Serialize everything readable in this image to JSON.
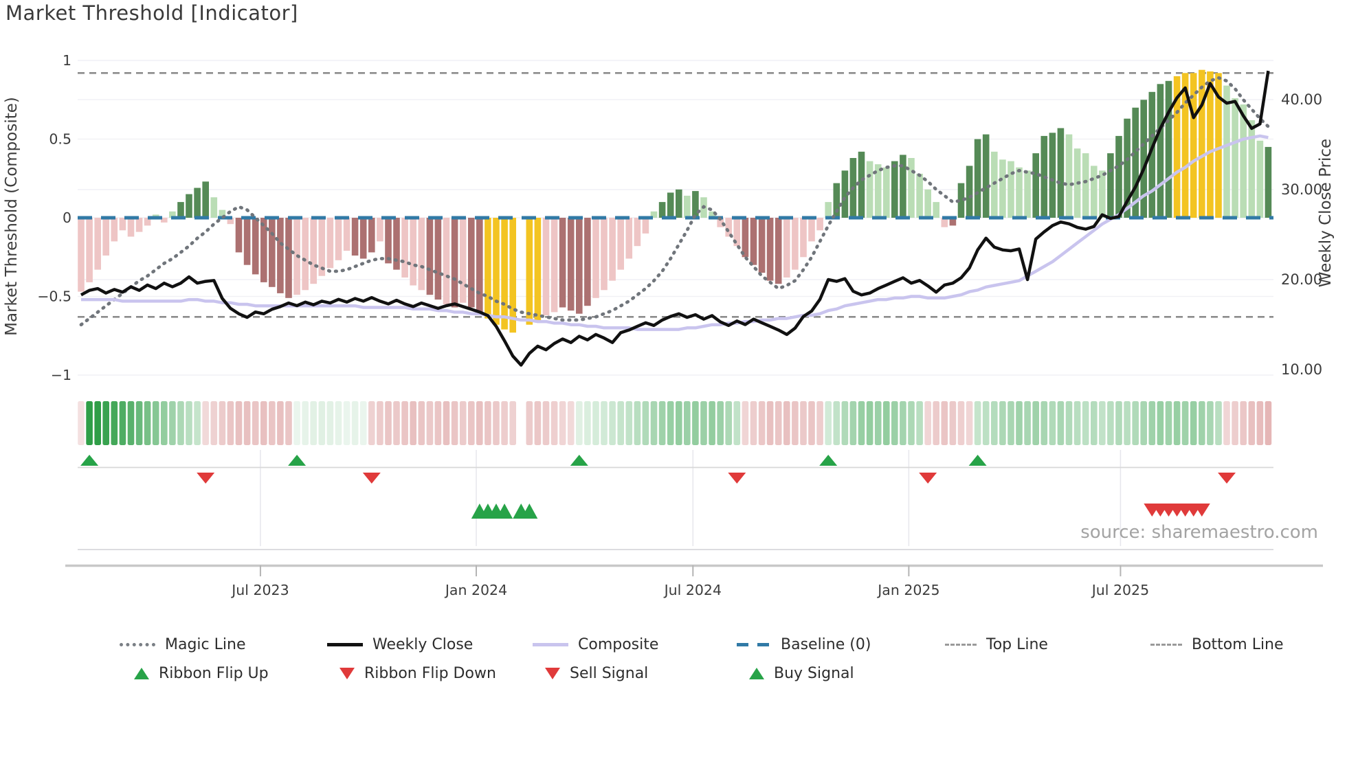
{
  "title": "Market Threshold [Indicator]",
  "source_note": "source: sharemaestro.com",
  "axes": {
    "left_label": "Market Threshold (Composite)",
    "right_label": "Weekly Close Price",
    "left_ticks": [
      "1",
      "0.5",
      "0",
      "−0.5",
      "−1"
    ],
    "left_tick_values": [
      1,
      0.5,
      0,
      -0.5,
      -1
    ],
    "right_ticks": [
      "40.00",
      "30.00",
      "20.00",
      "10.00"
    ],
    "right_tick_values": [
      40,
      30,
      20,
      10
    ],
    "x_ticks": [
      {
        "label": "Jul 2023",
        "week": 21.6
      },
      {
        "label": "Jan 2024",
        "week": 47.6
      },
      {
        "label": "Jul 2024",
        "week": 73.7
      },
      {
        "label": "Jan 2025",
        "week": 99.7
      },
      {
        "label": "Jul 2025",
        "week": 125.2
      }
    ]
  },
  "reference_lines": {
    "baseline": 0,
    "top_line": 0.92,
    "bottom_line": -0.63
  },
  "colors": {
    "bar_green_dark": "#558a56",
    "bar_green_light": "#baddb5",
    "bar_red_dark": "#ac7171",
    "bar_red_light": "#eec5c5",
    "bar_yellow": "#f3c422",
    "weekly_close": "#111111",
    "composite": "#c9c4ee",
    "magic_line": "#70757b",
    "baseline": "#317aa6",
    "ref_line_gray": "#8c8c8c",
    "ribbon_green": "#2f9e47",
    "ribbon_red": "#c96a6a",
    "flip_up_green": "#27a348",
    "flip_down_red": "#e03a3a",
    "grid": "#f1f1f5",
    "axis_text": "#3c3c3c"
  },
  "legend": {
    "row1": [
      {
        "label": "Magic Line",
        "swatch": "dotted-gray",
        "name": "magic-line"
      },
      {
        "label": "Weekly Close",
        "swatch": "solid-black",
        "name": "weekly-close"
      },
      {
        "label": "Composite",
        "swatch": "solid-lavender",
        "name": "composite"
      },
      {
        "label": "Baseline (0)",
        "swatch": "dashed-blue",
        "name": "baseline"
      },
      {
        "label": "Top Line",
        "swatch": "small-dash",
        "name": "top-line"
      },
      {
        "label": "Bottom Line",
        "swatch": "small-dash",
        "name": "bottom-line"
      }
    ],
    "row2": [
      {
        "label": "Ribbon Flip Up",
        "swatch": "tri-up",
        "name": "ribbon-flip-up"
      },
      {
        "label": "Ribbon Flip Down",
        "swatch": "tri-down",
        "name": "ribbon-flip-down"
      },
      {
        "label": "Sell Signal",
        "swatch": "tri-down",
        "name": "sell-signal"
      },
      {
        "label": "Buy Signal",
        "swatch": "tri-up",
        "name": "buy-signal"
      }
    ]
  },
  "chart_data": {
    "type": "bar",
    "title": "Market Threshold [Indicator]",
    "xlabel": "",
    "ylabel_left": "Market Threshold (Composite)",
    "ylabel_right": "Weekly Close Price",
    "x_axis_note": "weekly bars, ~Feb 2023 to Nov 2025, 144 weeks; tick labels Jul 2023 / Jan 2024 / Jul 2024 / Jan 2025 / Jul 2025",
    "left_axis_range": [
      -1.1,
      1.1
    ],
    "right_axis_range": [
      9,
      44
    ],
    "grid": true,
    "legend_position": "bottom",
    "threshold_bars": {
      "values": [
        -0.47,
        -0.41,
        -0.33,
        -0.24,
        -0.15,
        -0.08,
        -0.12,
        -0.09,
        -0.05,
        0.02,
        -0.03,
        0.04,
        0.1,
        0.15,
        0.19,
        0.23,
        0.13,
        0.05,
        -0.04,
        -0.22,
        -0.3,
        -0.36,
        -0.41,
        -0.44,
        -0.48,
        -0.51,
        -0.49,
        -0.46,
        -0.42,
        -0.37,
        -0.32,
        -0.27,
        -0.21,
        -0.24,
        -0.26,
        -0.22,
        -0.15,
        -0.29,
        -0.33,
        -0.38,
        -0.43,
        -0.46,
        -0.49,
        -0.52,
        -0.55,
        -0.57,
        -0.54,
        -0.57,
        -0.6,
        -0.64,
        -0.68,
        -0.71,
        -0.73,
        null,
        -0.68,
        -0.66,
        -0.62,
        -0.6,
        -0.57,
        -0.59,
        -0.61,
        -0.56,
        -0.51,
        -0.46,
        -0.4,
        -0.33,
        -0.26,
        -0.18,
        -0.1,
        0.04,
        0.1,
        0.16,
        0.18,
        0.14,
        0.17,
        0.13,
        0.04,
        -0.06,
        -0.12,
        -0.18,
        -0.25,
        -0.3,
        -0.35,
        -0.4,
        -0.42,
        -0.38,
        -0.33,
        -0.25,
        -0.15,
        -0.08,
        0.1,
        0.22,
        0.3,
        0.38,
        0.42,
        0.36,
        0.34,
        0.32,
        0.36,
        0.4,
        0.38,
        0.28,
        0.18,
        0.1,
        -0.06,
        -0.05,
        0.22,
        0.33,
        0.5,
        0.53,
        0.42,
        0.37,
        0.36,
        0.32,
        0.3,
        0.41,
        0.52,
        0.54,
        0.57,
        0.53,
        0.44,
        0.41,
        0.33,
        0.3,
        0.41,
        0.52,
        0.63,
        0.7,
        0.75,
        0.8,
        0.85,
        0.87,
        0.9,
        0.92,
        0.92,
        0.94,
        0.93,
        0.92,
        0.84,
        0.76,
        0.72,
        0.62,
        0.49,
        0.45
      ],
      "colors": [
        "PL",
        "PL",
        "PL",
        "PL",
        "PL",
        "PL",
        "PL",
        "PL",
        "PL",
        "GL",
        "PL",
        "GL",
        "GD",
        "GD",
        "GD",
        "GD",
        "GL",
        "GL",
        "PL",
        "PD",
        "PD",
        "PD",
        "PD",
        "PD",
        "PD",
        "PD",
        "PL",
        "PL",
        "PL",
        "PL",
        "PL",
        "PL",
        "PL",
        "PD",
        "PD",
        "PD",
        "PL",
        "PD",
        "PD",
        "PL",
        "PL",
        "PL",
        "PD",
        "PD",
        "PL",
        "PD",
        "PL",
        "PD",
        "PD",
        "Y",
        "Y",
        "Y",
        "Y",
        null,
        "Y",
        "Y",
        "PL",
        "PL",
        "PD",
        "PD",
        "PD",
        "PD",
        "PL",
        "PL",
        "PL",
        "PL",
        "PL",
        "PL",
        "PL",
        "GL",
        "GD",
        "GD",
        "GD",
        "GL",
        "GD",
        "GL",
        "GL",
        "PL",
        "PL",
        "PL",
        "PD",
        "PD",
        "PD",
        "PD",
        "PD",
        "PL",
        "PL",
        "PL",
        "PL",
        "PL",
        "GL",
        "GD",
        "GD",
        "GD",
        "GD",
        "GL",
        "GL",
        "GL",
        "GD",
        "GD",
        "GL",
        "GL",
        "GL",
        "GL",
        "PL",
        "PD",
        "GD",
        "GD",
        "GD",
        "GD",
        "GL",
        "GL",
        "GL",
        "GL",
        "GL",
        "GD",
        "GD",
        "GD",
        "GD",
        "GL",
        "GL",
        "GL",
        "GL",
        "GL",
        "GD",
        "GD",
        "GD",
        "GD",
        "GD",
        "GD",
        "GD",
        "GD",
        "Y",
        "Y",
        "Y",
        "Y",
        "Y",
        "Y",
        "GL",
        "GL",
        "GL",
        "GL",
        "GL",
        "GD"
      ]
    },
    "weekly_close": [
      18.3,
      18.8,
      19.0,
      18.5,
      18.9,
      18.6,
      19.2,
      18.8,
      19.4,
      19.0,
      19.6,
      19.2,
      19.6,
      20.3,
      19.6,
      19.8,
      19.9,
      17.9,
      16.8,
      16.2,
      15.8,
      16.4,
      16.2,
      16.7,
      17.0,
      17.4,
      17.1,
      17.5,
      17.2,
      17.6,
      17.4,
      17.8,
      17.5,
      17.9,
      17.6,
      18.0,
      17.6,
      17.3,
      17.7,
      17.3,
      17.0,
      17.4,
      17.1,
      16.8,
      17.1,
      17.3,
      17.0,
      16.7,
      16.4,
      16.0,
      14.8,
      13.2,
      11.5,
      10.5,
      11.8,
      12.6,
      12.2,
      12.9,
      13.4,
      13.0,
      13.7,
      13.3,
      13.9,
      13.5,
      13.0,
      14.1,
      14.4,
      14.8,
      15.2,
      14.9,
      15.5,
      15.9,
      16.2,
      15.8,
      16.1,
      15.6,
      16.0,
      15.3,
      14.9,
      15.4,
      15.0,
      15.6,
      15.2,
      14.8,
      14.4,
      13.9,
      14.6,
      15.9,
      16.5,
      17.8,
      20.0,
      19.8,
      20.1,
      18.7,
      18.3,
      18.5,
      19.0,
      19.4,
      19.8,
      20.2,
      19.6,
      19.9,
      19.3,
      18.6,
      19.4,
      19.6,
      20.2,
      21.3,
      23.3,
      24.6,
      23.6,
      23.3,
      23.2,
      23.4,
      20.0,
      24.5,
      25.3,
      26.0,
      26.4,
      26.2,
      25.8,
      25.6,
      25.9,
      27.2,
      26.8,
      27.0,
      28.7,
      30.3,
      32.3,
      34.6,
      36.8,
      38.6,
      40.2,
      41.3,
      38.0,
      39.4,
      41.8,
      40.3,
      39.6,
      39.8,
      38.2,
      36.8,
      37.3,
      43.2
    ],
    "composite": [
      -0.52,
      -0.52,
      -0.52,
      -0.52,
      -0.52,
      -0.53,
      -0.53,
      -0.53,
      -0.53,
      -0.53,
      -0.53,
      -0.53,
      -0.53,
      -0.52,
      -0.52,
      -0.53,
      -0.53,
      -0.54,
      -0.54,
      -0.55,
      -0.55,
      -0.56,
      -0.56,
      -0.56,
      -0.56,
      -0.56,
      -0.56,
      -0.56,
      -0.56,
      -0.56,
      -0.56,
      -0.56,
      -0.56,
      -0.56,
      -0.57,
      -0.57,
      -0.57,
      -0.57,
      -0.57,
      -0.57,
      -0.58,
      -0.58,
      -0.58,
      -0.59,
      -0.59,
      -0.6,
      -0.6,
      -0.61,
      -0.61,
      -0.62,
      -0.63,
      -0.63,
      -0.64,
      -0.65,
      -0.65,
      -0.66,
      -0.66,
      -0.67,
      -0.67,
      -0.68,
      -0.68,
      -0.69,
      -0.69,
      -0.7,
      -0.7,
      -0.7,
      -0.7,
      -0.71,
      -0.71,
      -0.71,
      -0.71,
      -0.71,
      -0.71,
      -0.7,
      -0.7,
      -0.69,
      -0.68,
      -0.68,
      -0.67,
      -0.67,
      -0.66,
      -0.66,
      -0.65,
      -0.65,
      -0.64,
      -0.64,
      -0.63,
      -0.62,
      -0.62,
      -0.61,
      -0.59,
      -0.58,
      -0.56,
      -0.55,
      -0.54,
      -0.53,
      -0.52,
      -0.52,
      -0.51,
      -0.51,
      -0.5,
      -0.5,
      -0.51,
      -0.51,
      -0.51,
      -0.5,
      -0.49,
      -0.47,
      -0.46,
      -0.44,
      -0.43,
      -0.42,
      -0.41,
      -0.4,
      -0.37,
      -0.34,
      -0.31,
      -0.28,
      -0.24,
      -0.2,
      -0.16,
      -0.12,
      -0.08,
      -0.04,
      -0.01,
      0.02,
      0.06,
      0.1,
      0.14,
      0.17,
      0.21,
      0.25,
      0.29,
      0.32,
      0.36,
      0.39,
      0.42,
      0.44,
      0.46,
      0.48,
      0.5,
      0.51,
      0.52,
      0.51
    ],
    "magic_line": [
      -0.68,
      -0.64,
      -0.6,
      -0.56,
      -0.52,
      -0.48,
      -0.44,
      -0.4,
      -0.37,
      -0.33,
      -0.29,
      -0.26,
      -0.22,
      -0.18,
      -0.13,
      -0.09,
      -0.04,
      0.0,
      0.04,
      0.07,
      0.05,
      0.0,
      -0.05,
      -0.1,
      -0.16,
      -0.2,
      -0.24,
      -0.27,
      -0.3,
      -0.32,
      -0.34,
      -0.34,
      -0.33,
      -0.31,
      -0.29,
      -0.27,
      -0.26,
      -0.26,
      -0.27,
      -0.28,
      -0.3,
      -0.31,
      -0.33,
      -0.35,
      -0.37,
      -0.39,
      -0.42,
      -0.45,
      -0.48,
      -0.5,
      -0.53,
      -0.55,
      -0.58,
      -0.6,
      -0.61,
      -0.62,
      -0.63,
      -0.64,
      -0.65,
      -0.65,
      -0.65,
      -0.64,
      -0.63,
      -0.61,
      -0.59,
      -0.56,
      -0.53,
      -0.49,
      -0.45,
      -0.4,
      -0.34,
      -0.26,
      -0.17,
      -0.08,
      0.02,
      0.07,
      0.05,
      -0.01,
      -0.09,
      -0.17,
      -0.25,
      -0.31,
      -0.37,
      -0.41,
      -0.45,
      -0.43,
      -0.4,
      -0.33,
      -0.25,
      -0.15,
      -0.05,
      0.04,
      0.13,
      0.19,
      0.24,
      0.27,
      0.3,
      0.32,
      0.33,
      0.33,
      0.3,
      0.27,
      0.23,
      0.18,
      0.14,
      0.1,
      0.11,
      0.13,
      0.16,
      0.19,
      0.22,
      0.25,
      0.28,
      0.3,
      0.29,
      0.28,
      0.26,
      0.24,
      0.22,
      0.21,
      0.22,
      0.23,
      0.25,
      0.27,
      0.3,
      0.33,
      0.37,
      0.42,
      0.47,
      0.52,
      0.57,
      0.62,
      0.67,
      0.73,
      0.78,
      0.83,
      0.87,
      0.89,
      0.87,
      0.82,
      0.75,
      0.69,
      0.63,
      0.58
    ],
    "ribbon": [
      -0.15,
      1.0,
      1.0,
      0.95,
      0.9,
      0.85,
      0.8,
      0.72,
      0.65,
      0.58,
      0.52,
      0.46,
      0.4,
      0.34,
      0.28,
      -0.18,
      -0.22,
      -0.25,
      -0.28,
      -0.3,
      -0.3,
      -0.28,
      -0.3,
      -0.28,
      -0.3,
      -0.28,
      0.1,
      0.12,
      0.14,
      0.15,
      0.14,
      0.12,
      0.1,
      0.12,
      0.1,
      -0.22,
      -0.25,
      -0.28,
      -0.26,
      -0.28,
      -0.3,
      -0.28,
      -0.26,
      -0.28,
      -0.3,
      -0.28,
      -0.25,
      -0.28,
      -0.3,
      -0.28,
      -0.26,
      -0.24,
      -0.22,
      null,
      -0.25,
      -0.27,
      -0.25,
      -0.23,
      -0.2,
      -0.18,
      0.15,
      0.18,
      0.2,
      0.22,
      0.25,
      0.28,
      0.3,
      0.34,
      0.38,
      0.42,
      0.46,
      0.5,
      0.52,
      0.48,
      0.52,
      0.48,
      0.52,
      0.48,
      0.4,
      0.3,
      -0.2,
      -0.24,
      -0.27,
      -0.3,
      -0.28,
      -0.3,
      -0.28,
      -0.26,
      -0.28,
      -0.24,
      0.22,
      0.3,
      0.38,
      0.44,
      0.5,
      0.52,
      0.48,
      0.52,
      0.48,
      0.44,
      0.4,
      0.34,
      -0.2,
      -0.25,
      -0.28,
      -0.26,
      -0.23,
      -0.2,
      0.28,
      0.32,
      0.36,
      0.4,
      0.42,
      0.46,
      0.42,
      0.46,
      0.42,
      0.38,
      0.42,
      0.38,
      0.34,
      0.32,
      0.36,
      0.3,
      0.34,
      0.38,
      0.34,
      0.38,
      0.42,
      0.46,
      0.5,
      0.46,
      0.5,
      0.46,
      0.5,
      0.46,
      0.42,
      0.34,
      -0.2,
      -0.24,
      -0.27,
      -0.3,
      -0.32,
      -0.35
    ],
    "signals": {
      "ribbon_flip_up_weeks": [
        1,
        26,
        60,
        90,
        108
      ],
      "ribbon_flip_down_weeks": [
        15,
        35,
        79,
        102,
        138
      ],
      "buy_signal_weeks": [
        48,
        49,
        50,
        51,
        53,
        54
      ],
      "sell_signal_weeks": [
        129,
        130,
        131,
        132,
        133,
        134,
        135
      ]
    }
  }
}
